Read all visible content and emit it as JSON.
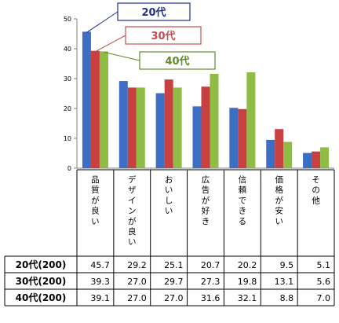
{
  "chart_data": {
    "type": "bar",
    "categories": [
      "品質が良い",
      "デザインが良い",
      "おいしい",
      "広告が好き",
      "信頼できる",
      "価格が安い",
      "その他"
    ],
    "series": [
      {
        "name": "20代",
        "table_label": "20代(200)",
        "color": "#3c6fc4",
        "callout_color": "#1f2f8c",
        "values": [
          45.7,
          29.2,
          25.1,
          20.7,
          20.2,
          9.5,
          5.1
        ]
      },
      {
        "name": "30代",
        "table_label": "30代(200)",
        "color": "#c94040",
        "callout_color": "#c0504d",
        "values": [
          39.3,
          27.0,
          29.7,
          27.3,
          19.8,
          13.1,
          5.6
        ]
      },
      {
        "name": "40代",
        "table_label": "40代(200)",
        "color": "#8fbc45",
        "callout_color": "#5f8a2c",
        "values": [
          39.1,
          27.0,
          27.0,
          31.6,
          32.1,
          8.8,
          7.0
        ]
      }
    ],
    "ylim": [
      0,
      50
    ],
    "yticks": [
      0,
      10,
      20,
      30,
      40,
      50
    ],
    "grid": false,
    "legend": "callouts top",
    "data_table": true
  }
}
